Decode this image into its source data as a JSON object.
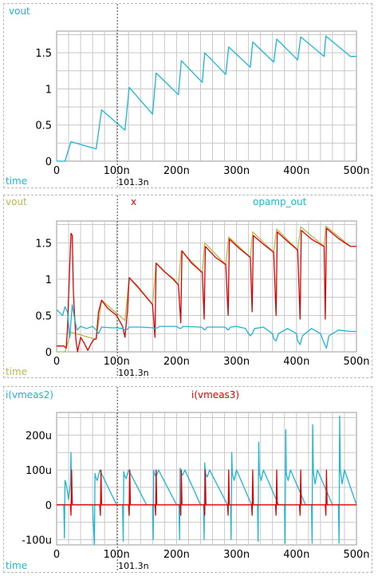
{
  "colors": {
    "cyan": "#1ab6d6",
    "red": "#e00000",
    "olive": "#b8b84a",
    "grid": "#c8c8c8"
  },
  "chart_data": [
    {
      "type": "line",
      "panel": "top",
      "legend": [
        {
          "name": "vout",
          "color": "#1ab6d6"
        }
      ],
      "xlabel": "time",
      "xlim": [
        0,
        500
      ],
      "ylim": [
        0,
        1.8
      ],
      "xticks": [
        "0",
        "100n",
        "200n",
        "300n",
        "400n",
        "500n"
      ],
      "yticks": [
        "0",
        "0.5",
        "1",
        "1.5"
      ],
      "cursor": {
        "x": 101.3,
        "label": "101.3n"
      },
      "series": [
        {
          "name": "vout",
          "color": "#1ab6d6",
          "x": [
            0,
            14,
            24,
            66,
            75,
            114,
            121,
            160,
            166,
            203,
            208,
            243,
            247,
            282,
            287,
            323,
            327,
            362,
            367,
            402,
            407,
            446,
            449,
            490,
            500
          ],
          "y": [
            0,
            0,
            0.27,
            0.17,
            0.71,
            0.43,
            1.02,
            0.65,
            1.22,
            0.92,
            1.39,
            1.09,
            1.5,
            1.2,
            1.58,
            1.3,
            1.65,
            1.37,
            1.69,
            1.4,
            1.72,
            1.45,
            1.73,
            1.45,
            1.45
          ]
        }
      ]
    },
    {
      "type": "line",
      "panel": "middle",
      "legend": [
        {
          "name": "vout",
          "color": "#b8b84a"
        },
        {
          "name": "x",
          "color": "#e00000"
        },
        {
          "name": "opamp_out",
          "color": "#1ab6d6"
        }
      ],
      "xlabel": "time",
      "xlim": [
        0,
        500
      ],
      "ylim": [
        0,
        1.8
      ],
      "xticks": [
        "0",
        "100n",
        "200n",
        "300n",
        "400n",
        "500n"
      ],
      "yticks": [
        "0",
        "0.5",
        "1",
        "1.5"
      ],
      "cursor": {
        "x": 101.3,
        "label": "101.3n"
      },
      "series": [
        {
          "name": "vout",
          "color": "#b8b84a",
          "x": [
            0,
            14,
            24,
            66,
            75,
            114,
            121,
            160,
            166,
            203,
            208,
            243,
            247,
            282,
            287,
            323,
            327,
            362,
            367,
            402,
            407,
            446,
            449,
            490,
            500
          ],
          "y": [
            0,
            0,
            0.27,
            0.17,
            0.71,
            0.43,
            1.02,
            0.65,
            1.22,
            0.92,
            1.39,
            1.09,
            1.5,
            1.2,
            1.58,
            1.3,
            1.65,
            1.37,
            1.69,
            1.4,
            1.72,
            1.45,
            1.73,
            1.45,
            1.45
          ]
        },
        {
          "name": "x",
          "color": "#e00000",
          "x": [
            0,
            12,
            16,
            18,
            21,
            24,
            26,
            28,
            32,
            35,
            40,
            46,
            52,
            58,
            62,
            66,
            70,
            75,
            85,
            100,
            110,
            114,
            118,
            121,
            135,
            150,
            160,
            164,
            166,
            180,
            195,
            203,
            207,
            209,
            225,
            243,
            246,
            248,
            265,
            282,
            286,
            288,
            305,
            323,
            326,
            328,
            345,
            362,
            366,
            368,
            385,
            402,
            406,
            408,
            425,
            446,
            448,
            450,
            470,
            490,
            500
          ],
          "y": [
            0.08,
            0.08,
            0.05,
            0.3,
            1.0,
            1.63,
            1.6,
            0.8,
            0.18,
            0.0,
            0.2,
            0.12,
            0.02,
            0.12,
            0.17,
            0.18,
            0.55,
            0.71,
            0.6,
            0.5,
            0.35,
            0.2,
            0.55,
            1.02,
            0.9,
            0.75,
            0.65,
            0.2,
            1.22,
            1.1,
            1.0,
            0.92,
            0.4,
            1.39,
            1.22,
            1.09,
            0.45,
            1.45,
            1.3,
            1.2,
            0.5,
            1.55,
            1.42,
            1.3,
            0.55,
            1.6,
            1.48,
            1.37,
            0.5,
            1.65,
            1.52,
            1.4,
            0.45,
            1.67,
            1.55,
            1.45,
            0.45,
            1.7,
            1.56,
            1.45,
            1.45
          ]
        },
        {
          "name": "opamp_out",
          "color": "#1ab6d6",
          "x": [
            0,
            10,
            14,
            18,
            22,
            26,
            30,
            34,
            40,
            50,
            60,
            66,
            70,
            75,
            90,
            100,
            110,
            114,
            118,
            121,
            140,
            160,
            164,
            168,
            172,
            200,
            203,
            207,
            211,
            240,
            243,
            247,
            251,
            280,
            282,
            286,
            290,
            300,
            315,
            320,
            323,
            326,
            330,
            345,
            360,
            362,
            366,
            370,
            385,
            400,
            402,
            406,
            410,
            425,
            440,
            446,
            450,
            454,
            470,
            490,
            500
          ],
          "y": [
            0.58,
            0.5,
            0.62,
            0.55,
            0.2,
            0.65,
            0.45,
            0.3,
            0.35,
            0.32,
            0.35,
            0.3,
            0.25,
            0.34,
            0.33,
            0.33,
            0.32,
            0.3,
            0.31,
            0.34,
            0.34,
            0.33,
            0.32,
            0.33,
            0.35,
            0.35,
            0.33,
            0.32,
            0.35,
            0.34,
            0.33,
            0.3,
            0.34,
            0.34,
            0.33,
            0.3,
            0.34,
            0.35,
            0.32,
            0.25,
            0.22,
            0.25,
            0.32,
            0.34,
            0.25,
            0.18,
            0.15,
            0.25,
            0.32,
            0.25,
            0.15,
            0.1,
            0.22,
            0.32,
            0.25,
            0.12,
            0.05,
            0.22,
            0.3,
            0.28,
            0.28
          ]
        }
      ]
    },
    {
      "type": "line",
      "panel": "bottom",
      "legend": [
        {
          "name": "i(vmeas2)",
          "color": "#1ab6d6"
        },
        {
          "name": "i(vmeas3)",
          "color": "#e00000"
        }
      ],
      "xlabel": "time",
      "xlim": [
        0,
        500
      ],
      "ylim": [
        -115,
        265
      ],
      "yunit": "u",
      "xticks": [
        "0",
        "100n",
        "200n",
        "300n",
        "400n",
        "500n"
      ],
      "yticks": [
        "-100u",
        "0",
        "100u",
        "200u"
      ],
      "cursor": {
        "x": 101.3,
        "label": "101.3n"
      },
      "series": [
        {
          "name": "i(vmeas2)",
          "color": "#1ab6d6",
          "x": [
            0,
            12,
            13,
            14,
            16,
            20,
            23,
            24,
            25,
            60,
            63,
            64,
            65,
            68,
            72,
            100,
            110,
            111,
            112,
            113,
            116,
            120,
            150,
            160,
            161,
            162,
            163,
            166,
            170,
            200,
            204,
            205,
            206,
            207,
            210,
            214,
            240,
            245,
            246,
            247,
            248,
            251,
            255,
            285,
            290,
            291,
            292,
            293,
            296,
            300,
            325,
            335,
            336,
            337,
            338,
            341,
            345,
            370,
            380,
            381,
            382,
            383,
            386,
            390,
            415,
            425,
            426,
            427,
            428,
            431,
            435,
            460,
            470,
            471,
            472,
            473,
            476,
            480,
            500
          ],
          "y": [
            0,
            0,
            -95,
            70,
            60,
            15,
            60,
            150,
            0,
            0,
            -115,
            90,
            80,
            70,
            100,
            0,
            0,
            -105,
            95,
            85,
            75,
            100,
            0,
            0,
            -100,
            100,
            90,
            80,
            100,
            0,
            0,
            -100,
            105,
            95,
            85,
            100,
            0,
            0,
            -100,
            120,
            90,
            80,
            100,
            0,
            0,
            -100,
            150,
            90,
            70,
            100,
            0,
            0,
            -105,
            180,
            90,
            70,
            100,
            0,
            0,
            -110,
            215,
            90,
            70,
            100,
            0,
            0,
            -110,
            230,
            95,
            60,
            100,
            0,
            0,
            -110,
            255,
            100,
            60,
            100,
            0
          ]
        },
        {
          "name": "i(vmeas3)",
          "color": "#e00000",
          "x": [
            0,
            23,
            24,
            25,
            26,
            72,
            73,
            74,
            75,
            120,
            121,
            122,
            123,
            164,
            165,
            166,
            167,
            206,
            207,
            208,
            209,
            246,
            247,
            248,
            249,
            285,
            286,
            287,
            288,
            325,
            326,
            327,
            328,
            365,
            366,
            367,
            368,
            405,
            406,
            407,
            408,
            448,
            449,
            450,
            451,
            500
          ],
          "y": [
            0,
            0,
            -30,
            100,
            0,
            0,
            -30,
            100,
            0,
            0,
            -30,
            100,
            0,
            0,
            -30,
            100,
            0,
            0,
            -30,
            100,
            0,
            0,
            -30,
            100,
            0,
            0,
            -30,
            100,
            0,
            0,
            -30,
            100,
            0,
            0,
            -30,
            100,
            0,
            0,
            -30,
            100,
            0,
            0,
            -30,
            100,
            0,
            0
          ]
        }
      ]
    }
  ]
}
